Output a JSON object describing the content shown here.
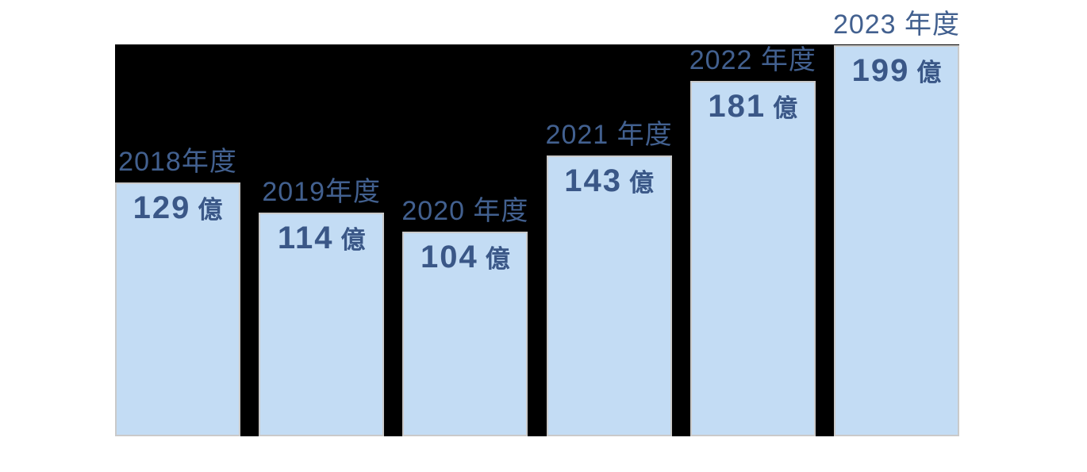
{
  "chart_data": {
    "type": "bar",
    "title": "",
    "xlabel": "",
    "ylabel": "",
    "unit": "億",
    "categories": [
      "2018年度",
      "2019年度",
      "2020 年度",
      "2021 年度",
      "2022 年度",
      "2023 年度"
    ],
    "values": [
      129,
      114,
      104,
      143,
      181,
      199
    ],
    "value_labels": [
      "129 億",
      "114 億",
      "104 億",
      "143 億",
      "181 億",
      "199 億"
    ],
    "ylim": [
      0,
      199
    ],
    "orientation": "vertical",
    "grid": false,
    "legend": false,
    "category_label_position": "above-bar",
    "value_label_position": "inside-top"
  },
  "colors": {
    "page_background": "#ffffff",
    "panel_background": "#000000",
    "bar_fill": "#c3dcf4",
    "bar_border": "#cacaca",
    "year_label": "#42608f",
    "value_label": "#3a5787"
  }
}
